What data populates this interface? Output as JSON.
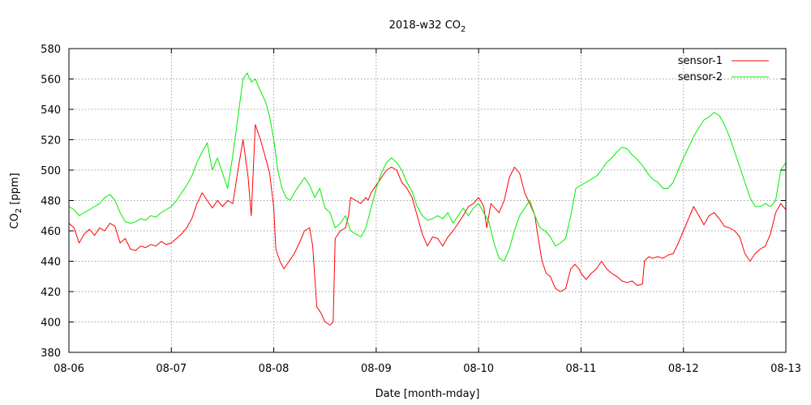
{
  "chart_data": {
    "type": "line",
    "title": {
      "main": "2018-w32 CO",
      "sub": "2"
    },
    "xlabel": "Date [month-mday]",
    "ylabel": {
      "pre": "CO",
      "sub": "2",
      "post": "  [ppm]"
    },
    "xlim": [
      0,
      7
    ],
    "ylim": [
      380,
      580
    ],
    "xticks": [
      {
        "x": 0,
        "label": "08-06"
      },
      {
        "x": 1,
        "label": "08-07"
      },
      {
        "x": 2,
        "label": "08-08"
      },
      {
        "x": 3,
        "label": "08-09"
      },
      {
        "x": 4,
        "label": "08-10"
      },
      {
        "x": 5,
        "label": "08-11"
      },
      {
        "x": 6,
        "label": "08-12"
      },
      {
        "x": 7,
        "label": "08-13"
      }
    ],
    "yticks": [
      380,
      400,
      420,
      440,
      460,
      480,
      500,
      520,
      540,
      560,
      580
    ],
    "grid": true,
    "legend_position": "top-right",
    "series": [
      {
        "name": "sensor-1",
        "color": "#ff0000",
        "points": [
          [
            0.0,
            465
          ],
          [
            0.05,
            462
          ],
          [
            0.1,
            452
          ],
          [
            0.15,
            458
          ],
          [
            0.2,
            461
          ],
          [
            0.25,
            457
          ],
          [
            0.3,
            462
          ],
          [
            0.35,
            460
          ],
          [
            0.4,
            465
          ],
          [
            0.45,
            463
          ],
          [
            0.5,
            452
          ],
          [
            0.55,
            455
          ],
          [
            0.6,
            448
          ],
          [
            0.65,
            447
          ],
          [
            0.7,
            450
          ],
          [
            0.75,
            449
          ],
          [
            0.8,
            451
          ],
          [
            0.85,
            450
          ],
          [
            0.9,
            453
          ],
          [
            0.95,
            451
          ],
          [
            1.0,
            452
          ],
          [
            1.05,
            455
          ],
          [
            1.1,
            458
          ],
          [
            1.15,
            462
          ],
          [
            1.2,
            468
          ],
          [
            1.25,
            478
          ],
          [
            1.3,
            485
          ],
          [
            1.35,
            480
          ],
          [
            1.4,
            475
          ],
          [
            1.45,
            480
          ],
          [
            1.5,
            476
          ],
          [
            1.55,
            480
          ],
          [
            1.6,
            478
          ],
          [
            1.65,
            500
          ],
          [
            1.7,
            520
          ],
          [
            1.75,
            495
          ],
          [
            1.78,
            470
          ],
          [
            1.82,
            530
          ],
          [
            1.87,
            520
          ],
          [
            1.92,
            508
          ],
          [
            1.96,
            498
          ],
          [
            2.0,
            475
          ],
          [
            2.02,
            448
          ],
          [
            2.06,
            440
          ],
          [
            2.1,
            435
          ],
          [
            2.15,
            440
          ],
          [
            2.2,
            445
          ],
          [
            2.25,
            452
          ],
          [
            2.3,
            460
          ],
          [
            2.35,
            462
          ],
          [
            2.38,
            450
          ],
          [
            2.42,
            410
          ],
          [
            2.46,
            406
          ],
          [
            2.5,
            400
          ],
          [
            2.55,
            398
          ],
          [
            2.58,
            400
          ],
          [
            2.6,
            455
          ],
          [
            2.65,
            460
          ],
          [
            2.7,
            462
          ],
          [
            2.73,
            470
          ],
          [
            2.75,
            482
          ],
          [
            2.8,
            480
          ],
          [
            2.85,
            478
          ],
          [
            2.9,
            482
          ],
          [
            2.92,
            480
          ],
          [
            2.95,
            485
          ],
          [
            3.0,
            490
          ],
          [
            3.05,
            495
          ],
          [
            3.1,
            500
          ],
          [
            3.15,
            502
          ],
          [
            3.2,
            500
          ],
          [
            3.25,
            492
          ],
          [
            3.3,
            488
          ],
          [
            3.35,
            482
          ],
          [
            3.4,
            470
          ],
          [
            3.45,
            458
          ],
          [
            3.5,
            450
          ],
          [
            3.55,
            456
          ],
          [
            3.6,
            455
          ],
          [
            3.65,
            450
          ],
          [
            3.7,
            456
          ],
          [
            3.75,
            460
          ],
          [
            3.8,
            465
          ],
          [
            3.85,
            470
          ],
          [
            3.9,
            476
          ],
          [
            3.95,
            478
          ],
          [
            4.0,
            482
          ],
          [
            4.05,
            476
          ],
          [
            4.08,
            462
          ],
          [
            4.12,
            478
          ],
          [
            4.16,
            475
          ],
          [
            4.2,
            472
          ],
          [
            4.25,
            480
          ],
          [
            4.3,
            495
          ],
          [
            4.35,
            502
          ],
          [
            4.4,
            498
          ],
          [
            4.45,
            485
          ],
          [
            4.5,
            478
          ],
          [
            4.55,
            470
          ],
          [
            4.58,
            456
          ],
          [
            4.62,
            440
          ],
          [
            4.66,
            432
          ],
          [
            4.7,
            430
          ],
          [
            4.75,
            422
          ],
          [
            4.8,
            420
          ],
          [
            4.85,
            422
          ],
          [
            4.9,
            435
          ],
          [
            4.94,
            438
          ],
          [
            4.98,
            435
          ],
          [
            5.0,
            432
          ],
          [
            5.05,
            428
          ],
          [
            5.1,
            432
          ],
          [
            5.15,
            435
          ],
          [
            5.2,
            440
          ],
          [
            5.25,
            435
          ],
          [
            5.3,
            432
          ],
          [
            5.35,
            430
          ],
          [
            5.4,
            427
          ],
          [
            5.45,
            426
          ],
          [
            5.5,
            427
          ],
          [
            5.55,
            424
          ],
          [
            5.6,
            425
          ],
          [
            5.62,
            440
          ],
          [
            5.66,
            443
          ],
          [
            5.7,
            442
          ],
          [
            5.75,
            443
          ],
          [
            5.8,
            442
          ],
          [
            5.85,
            444
          ],
          [
            5.9,
            445
          ],
          [
            5.95,
            452
          ],
          [
            6.0,
            460
          ],
          [
            6.05,
            468
          ],
          [
            6.1,
            476
          ],
          [
            6.15,
            470
          ],
          [
            6.2,
            464
          ],
          [
            6.25,
            470
          ],
          [
            6.3,
            472
          ],
          [
            6.35,
            468
          ],
          [
            6.4,
            463
          ],
          [
            6.45,
            462
          ],
          [
            6.5,
            460
          ],
          [
            6.55,
            456
          ],
          [
            6.6,
            445
          ],
          [
            6.65,
            440
          ],
          [
            6.7,
            445
          ],
          [
            6.75,
            448
          ],
          [
            6.8,
            450
          ],
          [
            6.85,
            458
          ],
          [
            6.9,
            472
          ],
          [
            6.95,
            478
          ],
          [
            7.0,
            474
          ]
        ]
      },
      {
        "name": "sensor-2",
        "color": "#00ee00",
        "points": [
          [
            0.0,
            476
          ],
          [
            0.05,
            474
          ],
          [
            0.1,
            470
          ],
          [
            0.15,
            472
          ],
          [
            0.2,
            474
          ],
          [
            0.25,
            476
          ],
          [
            0.3,
            478
          ],
          [
            0.35,
            482
          ],
          [
            0.4,
            484
          ],
          [
            0.45,
            480
          ],
          [
            0.5,
            472
          ],
          [
            0.55,
            466
          ],
          [
            0.6,
            465
          ],
          [
            0.65,
            466
          ],
          [
            0.7,
            468
          ],
          [
            0.75,
            467
          ],
          [
            0.8,
            470
          ],
          [
            0.85,
            469
          ],
          [
            0.9,
            472
          ],
          [
            0.95,
            474
          ],
          [
            1.0,
            476
          ],
          [
            1.05,
            480
          ],
          [
            1.1,
            485
          ],
          [
            1.15,
            490
          ],
          [
            1.2,
            496
          ],
          [
            1.25,
            505
          ],
          [
            1.3,
            512
          ],
          [
            1.35,
            518
          ],
          [
            1.4,
            500
          ],
          [
            1.45,
            508
          ],
          [
            1.5,
            498
          ],
          [
            1.55,
            488
          ],
          [
            1.6,
            510
          ],
          [
            1.65,
            535
          ],
          [
            1.7,
            560
          ],
          [
            1.74,
            564
          ],
          [
            1.78,
            558
          ],
          [
            1.82,
            560
          ],
          [
            1.87,
            552
          ],
          [
            1.92,
            545
          ],
          [
            1.96,
            535
          ],
          [
            2.0,
            520
          ],
          [
            2.04,
            500
          ],
          [
            2.08,
            488
          ],
          [
            2.12,
            482
          ],
          [
            2.16,
            480
          ],
          [
            2.2,
            485
          ],
          [
            2.25,
            490
          ],
          [
            2.3,
            495
          ],
          [
            2.35,
            490
          ],
          [
            2.4,
            482
          ],
          [
            2.45,
            488
          ],
          [
            2.5,
            475
          ],
          [
            2.55,
            472
          ],
          [
            2.6,
            462
          ],
          [
            2.65,
            465
          ],
          [
            2.7,
            470
          ],
          [
            2.75,
            460
          ],
          [
            2.8,
            458
          ],
          [
            2.85,
            456
          ],
          [
            2.9,
            462
          ],
          [
            2.95,
            475
          ],
          [
            3.0,
            488
          ],
          [
            3.05,
            498
          ],
          [
            3.1,
            505
          ],
          [
            3.15,
            508
          ],
          [
            3.2,
            505
          ],
          [
            3.25,
            500
          ],
          [
            3.3,
            492
          ],
          [
            3.35,
            486
          ],
          [
            3.4,
            476
          ],
          [
            3.45,
            470
          ],
          [
            3.5,
            467
          ],
          [
            3.55,
            468
          ],
          [
            3.6,
            470
          ],
          [
            3.65,
            468
          ],
          [
            3.7,
            472
          ],
          [
            3.75,
            465
          ],
          [
            3.8,
            470
          ],
          [
            3.85,
            475
          ],
          [
            3.9,
            470
          ],
          [
            3.95,
            475
          ],
          [
            4.0,
            478
          ],
          [
            4.05,
            472
          ],
          [
            4.1,
            466
          ],
          [
            4.15,
            452
          ],
          [
            4.2,
            442
          ],
          [
            4.25,
            440
          ],
          [
            4.3,
            448
          ],
          [
            4.35,
            460
          ],
          [
            4.4,
            470
          ],
          [
            4.45,
            475
          ],
          [
            4.5,
            480
          ],
          [
            4.55,
            470
          ],
          [
            4.6,
            462
          ],
          [
            4.65,
            460
          ],
          [
            4.7,
            456
          ],
          [
            4.75,
            450
          ],
          [
            4.8,
            452
          ],
          [
            4.85,
            455
          ],
          [
            4.9,
            470
          ],
          [
            4.95,
            488
          ],
          [
            5.0,
            490
          ],
          [
            5.05,
            492
          ],
          [
            5.1,
            494
          ],
          [
            5.15,
            496
          ],
          [
            5.2,
            500
          ],
          [
            5.25,
            505
          ],
          [
            5.3,
            508
          ],
          [
            5.35,
            512
          ],
          [
            5.4,
            515
          ],
          [
            5.45,
            514
          ],
          [
            5.5,
            510
          ],
          [
            5.55,
            507
          ],
          [
            5.6,
            503
          ],
          [
            5.65,
            498
          ],
          [
            5.7,
            494
          ],
          [
            5.75,
            492
          ],
          [
            5.8,
            488
          ],
          [
            5.85,
            488
          ],
          [
            5.9,
            492
          ],
          [
            5.95,
            500
          ],
          [
            6.0,
            508
          ],
          [
            6.05,
            515
          ],
          [
            6.1,
            522
          ],
          [
            6.15,
            528
          ],
          [
            6.2,
            533
          ],
          [
            6.25,
            535
          ],
          [
            6.3,
            538
          ],
          [
            6.35,
            536
          ],
          [
            6.4,
            530
          ],
          [
            6.45,
            522
          ],
          [
            6.5,
            512
          ],
          [
            6.55,
            502
          ],
          [
            6.6,
            492
          ],
          [
            6.65,
            482
          ],
          [
            6.7,
            476
          ],
          [
            6.75,
            476
          ],
          [
            6.8,
            478
          ],
          [
            6.85,
            476
          ],
          [
            6.9,
            480
          ],
          [
            6.95,
            500
          ],
          [
            7.0,
            505
          ]
        ]
      }
    ]
  }
}
